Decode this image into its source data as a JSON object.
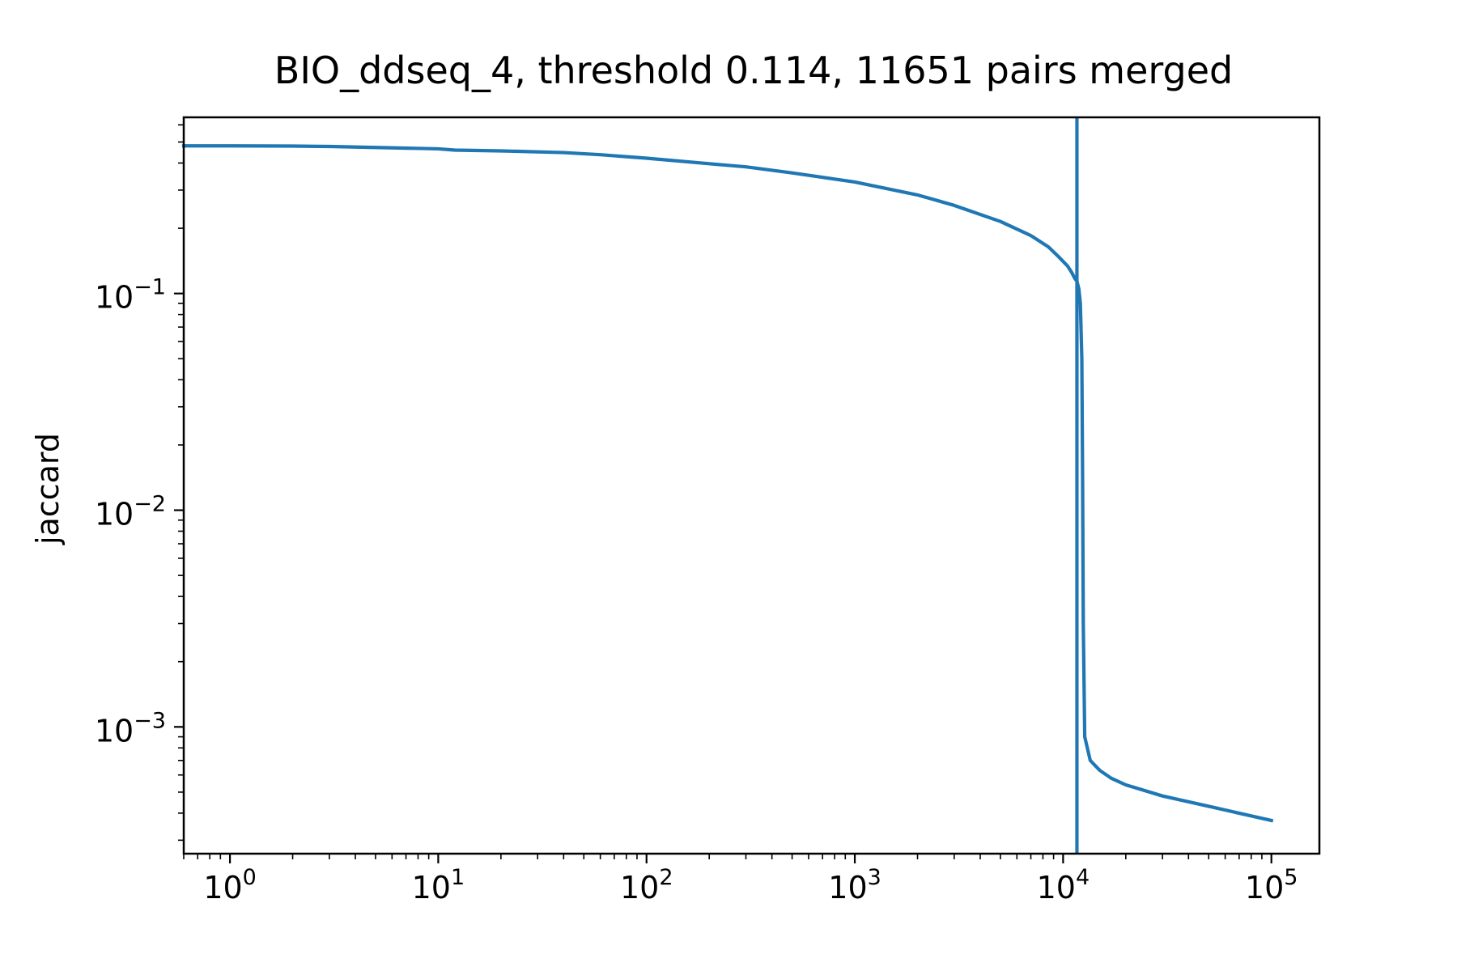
{
  "chart_data": {
    "type": "line",
    "title": "BIO_ddseq_4, threshold 0.114, 11651 pairs merged",
    "xlabel": "",
    "ylabel": "jaccard",
    "xscale": "log",
    "yscale": "log",
    "xlim": [
      0.6,
      170000
    ],
    "ylim": [
      0.00026,
      0.65
    ],
    "grid": false,
    "line_color": "#1f77b4",
    "x_ticks": [
      {
        "value": 1,
        "base": "10",
        "exp": "0"
      },
      {
        "value": 10,
        "base": "10",
        "exp": "1"
      },
      {
        "value": 100,
        "base": "10",
        "exp": "2"
      },
      {
        "value": 1000,
        "base": "10",
        "exp": "3"
      },
      {
        "value": 10000,
        "base": "10",
        "exp": "4"
      },
      {
        "value": 100000,
        "base": "10",
        "exp": "5"
      }
    ],
    "y_ticks": [
      {
        "value": 0.1,
        "base": "10",
        "exp": "−1"
      },
      {
        "value": 0.01,
        "base": "10",
        "exp": "−2"
      },
      {
        "value": 0.001,
        "base": "10",
        "exp": "−3"
      }
    ],
    "threshold_line": {
      "x": 11651
    },
    "series": [
      {
        "x": [
          0.6,
          1,
          2,
          3,
          5,
          10,
          12,
          20,
          40,
          60,
          100,
          200,
          300,
          500,
          1000,
          2000,
          3000,
          5000,
          7000,
          8500,
          9500,
          10500,
          11000,
          11400,
          11651,
          11900,
          12100,
          12300,
          12400,
          12500,
          12700,
          13500,
          15000,
          17000,
          20000,
          30000,
          50000,
          100000
        ],
        "y": [
          0.48,
          0.48,
          0.479,
          0.477,
          0.472,
          0.465,
          0.459,
          0.455,
          0.447,
          0.437,
          0.421,
          0.397,
          0.384,
          0.36,
          0.327,
          0.285,
          0.255,
          0.215,
          0.185,
          0.164,
          0.148,
          0.134,
          0.125,
          0.117,
          0.114,
          0.105,
          0.09,
          0.05,
          0.015,
          0.003,
          0.0009,
          0.0007,
          0.00063,
          0.00058,
          0.00054,
          0.00048,
          0.00043,
          0.00037
        ]
      }
    ]
  }
}
